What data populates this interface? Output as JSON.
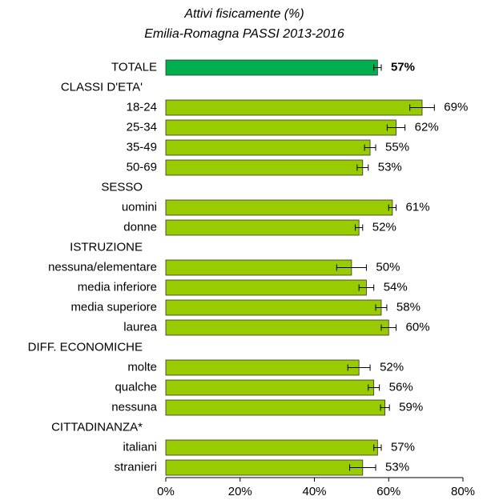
{
  "chart_data": {
    "type": "bar",
    "orientation": "horizontal",
    "title": "Attivi fisicamente (%)",
    "subtitle": "Emilia-Romagna PASSI 2013-2016",
    "categories": [
      "TOTALE",
      "CLASSI D'ETA'",
      "18-24",
      "25-34",
      "35-49",
      "50-69",
      "SESSO",
      "uomini",
      "donne",
      "ISTRUZIONE",
      "nessuna/elementare",
      "media inferiore",
      "media superiore",
      "laurea",
      "DIFF. ECONOMICHE",
      "molte",
      "qualche",
      "nessuna",
      "CITTADINANZA*",
      "italiani",
      "stranieri"
    ],
    "values": [
      57,
      null,
      69,
      62,
      55,
      53,
      null,
      61,
      52,
      null,
      50,
      54,
      58,
      60,
      null,
      52,
      56,
      59,
      null,
      57,
      53
    ],
    "value_labels": [
      "57%",
      null,
      "69%",
      "62%",
      "55%",
      "53%",
      null,
      "61%",
      "52%",
      null,
      "50%",
      "54%",
      "58%",
      "60%",
      null,
      "52%",
      "56%",
      "59%",
      null,
      "57%",
      "53%"
    ],
    "errors": [
      1,
      null,
      3.3,
      2.4,
      1.5,
      1.5,
      null,
      1,
      1,
      null,
      4,
      2,
      1.5,
      2,
      null,
      3,
      1.5,
      1.2,
      null,
      1,
      3.5
    ],
    "color": "#99cc00",
    "colors": [
      "#00b050",
      null,
      "#99cc00",
      "#99cc00",
      "#99cc00",
      "#99cc00",
      null,
      "#99cc00",
      "#99cc00",
      null,
      "#99cc00",
      "#99cc00",
      "#99cc00",
      "#99cc00",
      null,
      "#99cc00",
      "#99cc00",
      "#99cc00",
      null,
      "#99cc00",
      "#99cc00"
    ],
    "xlim": [
      0,
      80
    ],
    "xticks": [
      {
        "value": 0,
        "label": "0%"
      },
      {
        "value": 20,
        "label": "20%"
      },
      {
        "value": 40,
        "label": "40%"
      },
      {
        "value": 60,
        "label": "60%"
      },
      {
        "value": 80,
        "label": "80%"
      }
    ],
    "grid": false
  }
}
